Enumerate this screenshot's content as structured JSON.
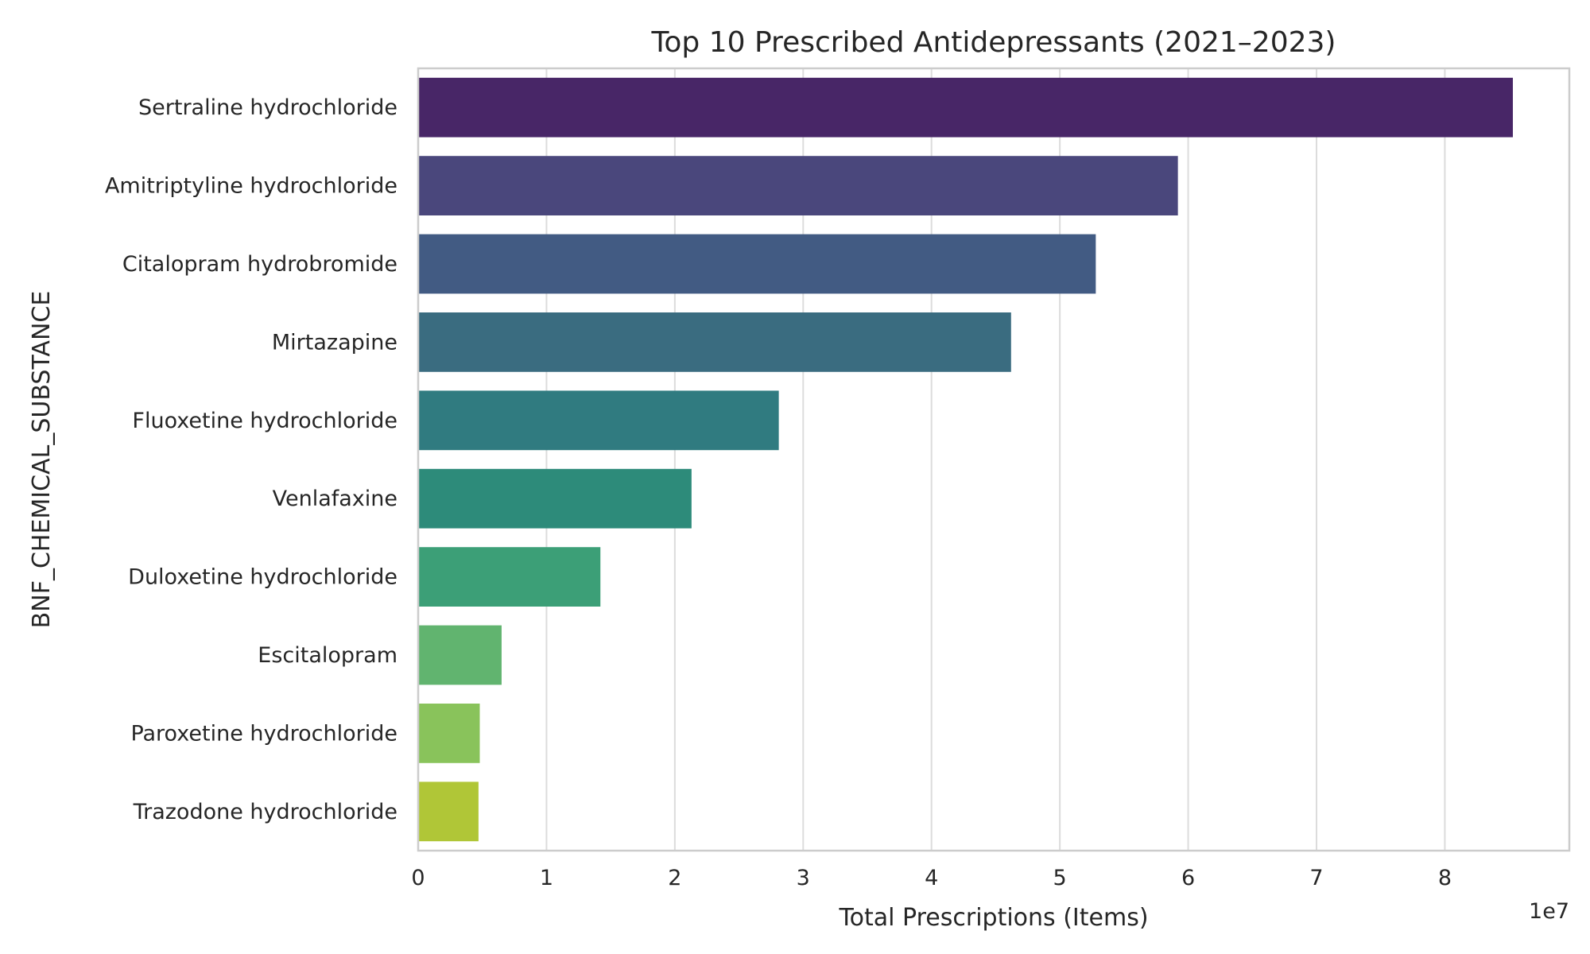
{
  "chart_data": {
    "type": "bar",
    "orientation": "horizontal",
    "title": "Top 10 Prescribed Antidepressants (2021–2023)",
    "xlabel": "Total Prescriptions (Items)",
    "ylabel": "BNF_CHEMICAL_SUBSTANCE",
    "x_scale_label": "1e7",
    "x_tick_values": [
      0,
      1,
      2,
      3,
      4,
      5,
      6,
      7,
      8
    ],
    "x_tick_labels": [
      "0",
      "1",
      "2",
      "3",
      "4",
      "5",
      "6",
      "7",
      "8"
    ],
    "xlim": [
      0,
      8.97
    ],
    "grid": "vertical",
    "categories": [
      "Sertraline hydrochloride",
      "Amitriptyline hydrochloride",
      "Citalopram hydrobromide",
      "Mirtazapine",
      "Fluoxetine hydrochloride",
      "Venlafaxine",
      "Duloxetine hydrochloride",
      "Escitalopram",
      "Paroxetine hydrochloride",
      "Trazodone hydrochloride"
    ],
    "values": [
      8.53,
      5.92,
      5.28,
      4.62,
      2.81,
      2.13,
      1.42,
      0.65,
      0.48,
      0.47
    ],
    "colors": [
      "#482667",
      "#4a477c",
      "#425b83",
      "#3a6c80",
      "#307b80",
      "#2d8b7a",
      "#3c9f77",
      "#61b46f",
      "#89c35b",
      "#b0c637"
    ]
  }
}
